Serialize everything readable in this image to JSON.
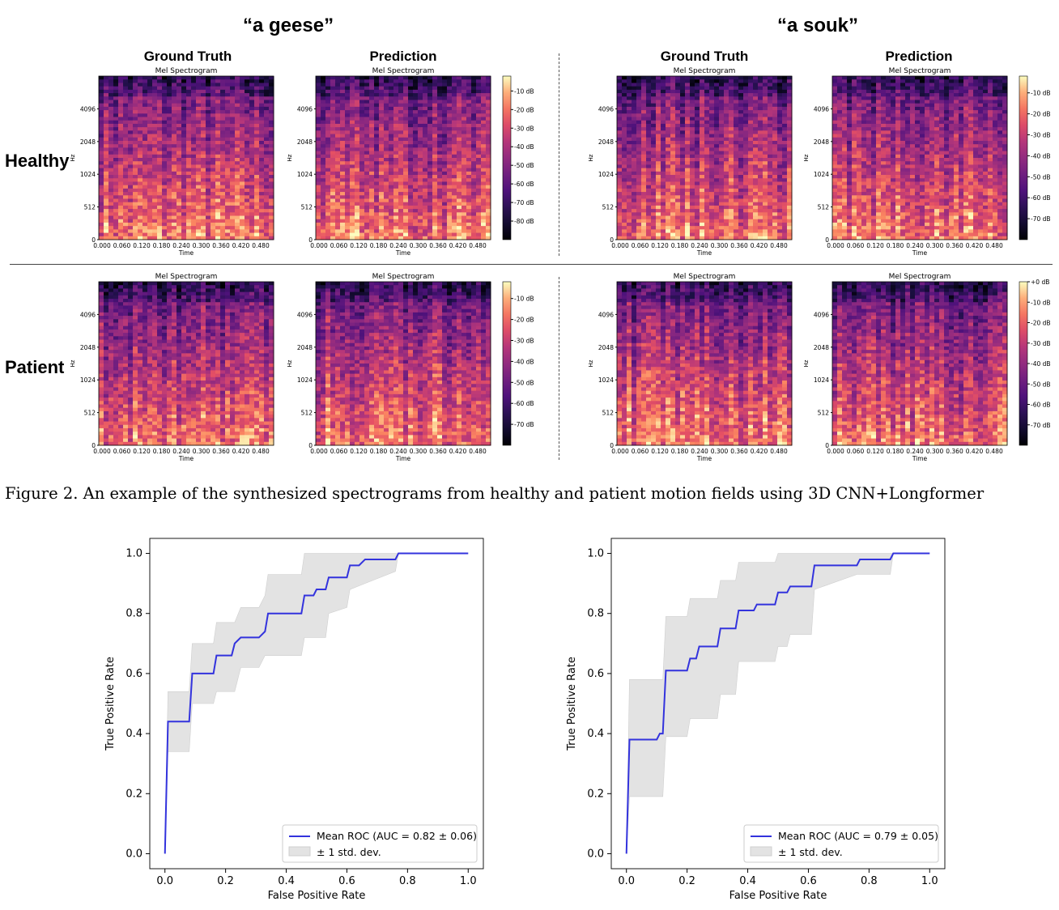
{
  "phrases": [
    "“a geese”",
    "“a souk”"
  ],
  "rows": [
    "Healthy",
    "Patient"
  ],
  "panel_headers": [
    "Ground Truth",
    "Prediction",
    "Ground Truth",
    "Prediction"
  ],
  "spectrogram": {
    "title": "Mel Spectrogram",
    "ylabel": "Hz",
    "xlabel": "Time",
    "y_ticks": [
      "4096",
      "2048",
      "1024",
      "512",
      "0"
    ],
    "x_ticks": [
      "0.000",
      "0.060",
      "0.120",
      "0.180",
      "0.240",
      "0.300",
      "0.360",
      "0.420",
      "0.480"
    ]
  },
  "colorbars": [
    {
      "ticks": [
        "-10 dB",
        "-20 dB",
        "-30 dB",
        "-40 dB",
        "-50 dB",
        "-60 dB",
        "-70 dB",
        "-80 dB"
      ]
    },
    {
      "ticks": [
        "-10 dB",
        "-20 dB",
        "-30 dB",
        "-40 dB",
        "-50 dB",
        "-60 dB",
        "-70 dB"
      ]
    },
    {
      "ticks": [
        "-10 dB",
        "-20 dB",
        "-30 dB",
        "-40 dB",
        "-50 dB",
        "-60 dB",
        "-70 dB"
      ]
    },
    {
      "ticks": [
        "+0 dB",
        "-10 dB",
        "-20 dB",
        "-30 dB",
        "-40 dB",
        "-50 dB",
        "-60 dB",
        "-70 dB"
      ]
    }
  ],
  "caption": "Figure 2. An example of the synthesized spectrograms from healthy and patient motion fields using 3D CNN+Longformer",
  "colors": {
    "roc_line": "#3333dd",
    "band": "#e3e3e3"
  },
  "chart_data": [
    {
      "type": "line",
      "xlabel": "False Positive Rate",
      "ylabel": "True Positive Rate",
      "xlim": [
        -0.05,
        1.05
      ],
      "ylim": [
        -0.05,
        1.05
      ],
      "x_ticks": [
        "0.0",
        "0.2",
        "0.4",
        "0.6",
        "0.8",
        "1.0"
      ],
      "y_ticks": [
        "0.0",
        "0.2",
        "0.4",
        "0.6",
        "0.8",
        "1.0"
      ],
      "legend_position": "lower-right",
      "series": [
        {
          "name": "Mean ROC (AUC = 0.82 ± 0.06)",
          "points": [
            [
              0,
              0
            ],
            [
              0.01,
              0.44
            ],
            [
              0.08,
              0.44
            ],
            [
              0.09,
              0.6
            ],
            [
              0.16,
              0.6
            ],
            [
              0.17,
              0.66
            ],
            [
              0.22,
              0.66
            ],
            [
              0.23,
              0.7
            ],
            [
              0.25,
              0.72
            ],
            [
              0.31,
              0.72
            ],
            [
              0.33,
              0.74
            ],
            [
              0.34,
              0.8
            ],
            [
              0.45,
              0.8
            ],
            [
              0.46,
              0.86
            ],
            [
              0.49,
              0.86
            ],
            [
              0.5,
              0.88
            ],
            [
              0.53,
              0.88
            ],
            [
              0.54,
              0.92
            ],
            [
              0.6,
              0.92
            ],
            [
              0.61,
              0.96
            ],
            [
              0.64,
              0.96
            ],
            [
              0.66,
              0.98
            ],
            [
              0.76,
              0.98
            ],
            [
              0.77,
              1.0
            ],
            [
              1.0,
              1.0
            ]
          ]
        },
        {
          "name": "± 1 std. dev.",
          "upper": [
            [
              0,
              0
            ],
            [
              0.01,
              0.54
            ],
            [
              0.08,
              0.54
            ],
            [
              0.09,
              0.7
            ],
            [
              0.16,
              0.7
            ],
            [
              0.17,
              0.77
            ],
            [
              0.23,
              0.77
            ],
            [
              0.25,
              0.82
            ],
            [
              0.31,
              0.82
            ],
            [
              0.33,
              0.86
            ],
            [
              0.34,
              0.93
            ],
            [
              0.45,
              0.93
            ],
            [
              0.46,
              1.0
            ],
            [
              1.0,
              1.0
            ]
          ],
          "lower": [
            [
              0,
              0
            ],
            [
              0.01,
              0.34
            ],
            [
              0.08,
              0.34
            ],
            [
              0.09,
              0.5
            ],
            [
              0.16,
              0.5
            ],
            [
              0.17,
              0.54
            ],
            [
              0.23,
              0.54
            ],
            [
              0.25,
              0.62
            ],
            [
              0.31,
              0.62
            ],
            [
              0.33,
              0.66
            ],
            [
              0.34,
              0.66
            ],
            [
              0.45,
              0.66
            ],
            [
              0.46,
              0.72
            ],
            [
              0.53,
              0.72
            ],
            [
              0.54,
              0.8
            ],
            [
              0.6,
              0.82
            ],
            [
              0.61,
              0.88
            ],
            [
              0.66,
              0.9
            ],
            [
              0.76,
              0.94
            ],
            [
              0.77,
              1.0
            ],
            [
              1.0,
              1.0
            ]
          ]
        }
      ]
    },
    {
      "type": "line",
      "xlabel": "False Positive Rate",
      "ylabel": "True Positive Rate",
      "xlim": [
        -0.05,
        1.05
      ],
      "ylim": [
        -0.05,
        1.05
      ],
      "x_ticks": [
        "0.0",
        "0.2",
        "0.4",
        "0.6",
        "0.8",
        "1.0"
      ],
      "y_ticks": [
        "0.0",
        "0.2",
        "0.4",
        "0.6",
        "0.8",
        "1.0"
      ],
      "legend_position": "lower-right",
      "series": [
        {
          "name": "Mean ROC (AUC = 0.79 ± 0.05)",
          "points": [
            [
              0,
              0
            ],
            [
              0.01,
              0.38
            ],
            [
              0.1,
              0.38
            ],
            [
              0.11,
              0.4
            ],
            [
              0.12,
              0.4
            ],
            [
              0.13,
              0.61
            ],
            [
              0.2,
              0.61
            ],
            [
              0.21,
              0.65
            ],
            [
              0.23,
              0.65
            ],
            [
              0.24,
              0.69
            ],
            [
              0.3,
              0.69
            ],
            [
              0.31,
              0.75
            ],
            [
              0.36,
              0.75
            ],
            [
              0.37,
              0.81
            ],
            [
              0.42,
              0.81
            ],
            [
              0.43,
              0.83
            ],
            [
              0.49,
              0.83
            ],
            [
              0.5,
              0.87
            ],
            [
              0.53,
              0.87
            ],
            [
              0.54,
              0.89
            ],
            [
              0.61,
              0.89
            ],
            [
              0.62,
              0.96
            ],
            [
              0.76,
              0.96
            ],
            [
              0.77,
              0.98
            ],
            [
              0.87,
              0.98
            ],
            [
              0.88,
              1.0
            ],
            [
              1.0,
              1.0
            ]
          ]
        },
        {
          "name": "± 1 std. dev.",
          "upper": [
            [
              0,
              0
            ],
            [
              0.01,
              0.58
            ],
            [
              0.12,
              0.58
            ],
            [
              0.13,
              0.79
            ],
            [
              0.2,
              0.79
            ],
            [
              0.21,
              0.85
            ],
            [
              0.3,
              0.85
            ],
            [
              0.31,
              0.91
            ],
            [
              0.36,
              0.91
            ],
            [
              0.37,
              0.97
            ],
            [
              0.49,
              0.97
            ],
            [
              0.5,
              1.0
            ],
            [
              1.0,
              1.0
            ]
          ],
          "lower": [
            [
              0,
              0
            ],
            [
              0.01,
              0.19
            ],
            [
              0.12,
              0.19
            ],
            [
              0.13,
              0.39
            ],
            [
              0.2,
              0.39
            ],
            [
              0.21,
              0.45
            ],
            [
              0.3,
              0.45
            ],
            [
              0.31,
              0.53
            ],
            [
              0.36,
              0.53
            ],
            [
              0.37,
              0.64
            ],
            [
              0.49,
              0.64
            ],
            [
              0.5,
              0.69
            ],
            [
              0.53,
              0.69
            ],
            [
              0.54,
              0.73
            ],
            [
              0.61,
              0.73
            ],
            [
              0.62,
              0.88
            ],
            [
              0.76,
              0.93
            ],
            [
              0.87,
              0.93
            ],
            [
              0.88,
              1.0
            ],
            [
              1.0,
              1.0
            ]
          ]
        }
      ]
    }
  ]
}
